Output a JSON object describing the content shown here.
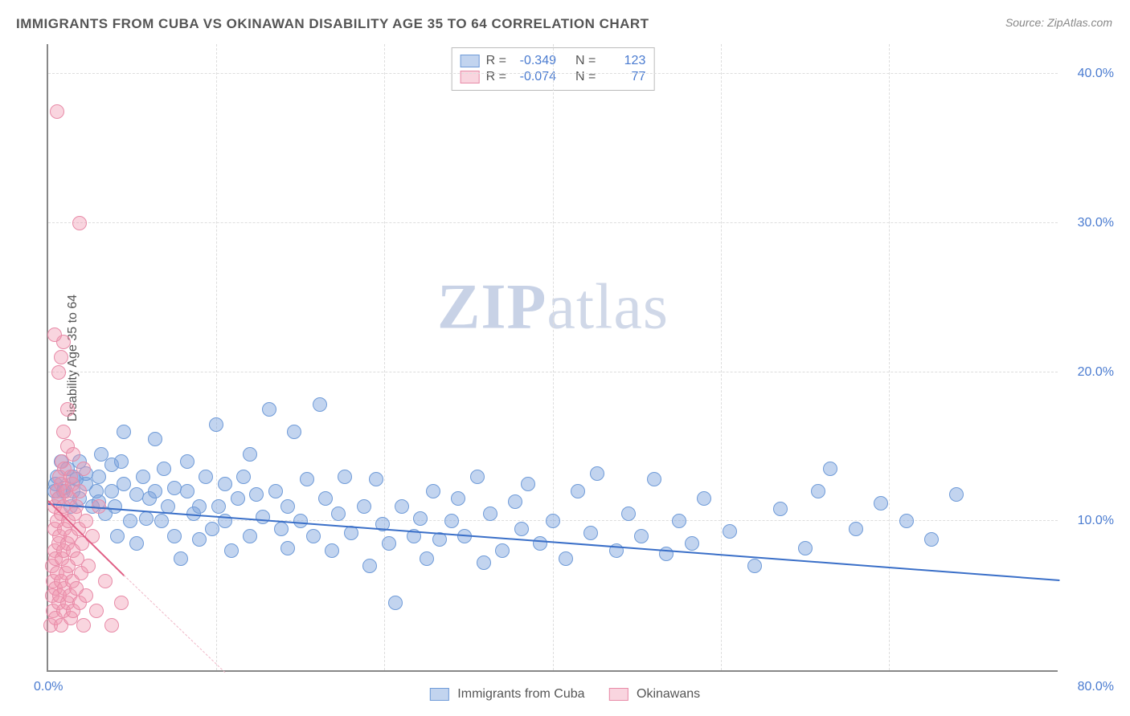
{
  "title": "IMMIGRANTS FROM CUBA VS OKINAWAN DISABILITY AGE 35 TO 64 CORRELATION CHART",
  "source_label": "Source:",
  "source_value": "ZipAtlas.com",
  "ylabel": "Disability Age 35 to 64",
  "watermark_a": "ZIP",
  "watermark_b": "atlas",
  "chart": {
    "type": "scatter",
    "xlim": [
      0,
      80
    ],
    "ylim": [
      0,
      42
    ],
    "x_tick_labels": {
      "origin": "0.0%",
      "max": "80.0%"
    },
    "y_ticks": [
      10,
      20,
      30,
      40
    ],
    "y_tick_labels": [
      "10.0%",
      "20.0%",
      "30.0%",
      "40.0%"
    ],
    "x_gridlines": [
      13.3,
      26.6,
      40,
      53.3,
      66.6
    ],
    "background_color": "#ffffff",
    "grid_color": "#dddddd",
    "axis_color": "#888888",
    "tick_label_color": "#4a7bd0",
    "marker_radius": 9,
    "series": [
      {
        "key": "cuba",
        "label": "Immigrants from Cuba",
        "R": "-0.349",
        "N": "123",
        "color_fill": "rgba(120,160,220,0.45)",
        "color_stroke": "#6f9bd8",
        "trend": {
          "x1": 0,
          "y1": 11.3,
          "x2": 80,
          "y2": 6.2,
          "width": 2.5,
          "color": "#3a6fc8",
          "style": "solid"
        },
        "points": [
          [
            0.5,
            12
          ],
          [
            0.7,
            13
          ],
          [
            0.8,
            11.5
          ],
          [
            0.6,
            12.5
          ],
          [
            1.2,
            12
          ],
          [
            1,
            14
          ],
          [
            1.5,
            13.5
          ],
          [
            1.3,
            12.2
          ],
          [
            1.8,
            11
          ],
          [
            2,
            12
          ],
          [
            2,
            13
          ],
          [
            2.2,
            12.8
          ],
          [
            2.5,
            11.5
          ],
          [
            2.5,
            14
          ],
          [
            3,
            12.5
          ],
          [
            3,
            13.2
          ],
          [
            3.5,
            11
          ],
          [
            3.8,
            12
          ],
          [
            4,
            13
          ],
          [
            4,
            11.3
          ],
          [
            4.2,
            14.5
          ],
          [
            4.5,
            10.5
          ],
          [
            5,
            12
          ],
          [
            5,
            13.8
          ],
          [
            5.3,
            11
          ],
          [
            5.5,
            9
          ],
          [
            5.8,
            14
          ],
          [
            6,
            12.5
          ],
          [
            6,
            16
          ],
          [
            6.5,
            10
          ],
          [
            7,
            11.8
          ],
          [
            7,
            8.5
          ],
          [
            7.5,
            13
          ],
          [
            7.8,
            10.2
          ],
          [
            8,
            11.5
          ],
          [
            8.5,
            12
          ],
          [
            8.5,
            15.5
          ],
          [
            9,
            10
          ],
          [
            9.2,
            13.5
          ],
          [
            9.5,
            11
          ],
          [
            10,
            12.2
          ],
          [
            10,
            9
          ],
          [
            10.5,
            7.5
          ],
          [
            11,
            14
          ],
          [
            11,
            12
          ],
          [
            11.5,
            10.5
          ],
          [
            12,
            8.8
          ],
          [
            12,
            11
          ],
          [
            12.5,
            13
          ],
          [
            13,
            9.5
          ],
          [
            13.3,
            16.5
          ],
          [
            13.5,
            11
          ],
          [
            14,
            12.5
          ],
          [
            14,
            10
          ],
          [
            14.5,
            8
          ],
          [
            15,
            11.5
          ],
          [
            15.5,
            13
          ],
          [
            16,
            9
          ],
          [
            16,
            14.5
          ],
          [
            16.5,
            11.8
          ],
          [
            17,
            10.3
          ],
          [
            17.5,
            17.5
          ],
          [
            18,
            12
          ],
          [
            18.5,
            9.5
          ],
          [
            19,
            11
          ],
          [
            19,
            8.2
          ],
          [
            19.5,
            16
          ],
          [
            20,
            10
          ],
          [
            20.5,
            12.8
          ],
          [
            21,
            9
          ],
          [
            21.5,
            17.8
          ],
          [
            22,
            11.5
          ],
          [
            22.5,
            8
          ],
          [
            23,
            10.5
          ],
          [
            23.5,
            13
          ],
          [
            24,
            9.2
          ],
          [
            25,
            11
          ],
          [
            25.5,
            7
          ],
          [
            26,
            12.8
          ],
          [
            26.5,
            9.8
          ],
          [
            27,
            8.5
          ],
          [
            27.5,
            4.5
          ],
          [
            28,
            11
          ],
          [
            29,
            9
          ],
          [
            29.5,
            10.2
          ],
          [
            30,
            7.5
          ],
          [
            30.5,
            12
          ],
          [
            31,
            8.8
          ],
          [
            32,
            10
          ],
          [
            32.5,
            11.5
          ],
          [
            33,
            9
          ],
          [
            34,
            13
          ],
          [
            34.5,
            7.2
          ],
          [
            35,
            10.5
          ],
          [
            36,
            8
          ],
          [
            37,
            11.3
          ],
          [
            37.5,
            9.5
          ],
          [
            38,
            12.5
          ],
          [
            39,
            8.5
          ],
          [
            40,
            10
          ],
          [
            41,
            7.5
          ],
          [
            42,
            12
          ],
          [
            43,
            9.2
          ],
          [
            43.5,
            13.2
          ],
          [
            45,
            8
          ],
          [
            46,
            10.5
          ],
          [
            47,
            9
          ],
          [
            48,
            12.8
          ],
          [
            49,
            7.8
          ],
          [
            50,
            10
          ],
          [
            51,
            8.5
          ],
          [
            52,
            11.5
          ],
          [
            54,
            9.3
          ],
          [
            56,
            7
          ],
          [
            58,
            10.8
          ],
          [
            60,
            8.2
          ],
          [
            61,
            12
          ],
          [
            62,
            13.5
          ],
          [
            64,
            9.5
          ],
          [
            66,
            11.2
          ],
          [
            68,
            10
          ],
          [
            70,
            8.8
          ],
          [
            72,
            11.8
          ]
        ]
      },
      {
        "key": "okinawans",
        "label": "Okinawans",
        "R": "-0.074",
        "N": "77",
        "color_fill": "rgba(240,150,175,0.4)",
        "color_stroke": "#e88ba8",
        "trend_solid": {
          "x1": 0,
          "y1": 11.5,
          "x2": 6,
          "y2": 6.5,
          "width": 2,
          "color": "#e05f85",
          "style": "solid"
        },
        "trend_dashed": {
          "x1": 6,
          "y1": 6.5,
          "x2": 14,
          "y2": 0,
          "width": 1.5,
          "color": "#f0b8c8",
          "style": "dashed"
        },
        "points": [
          [
            0.2,
            3
          ],
          [
            0.3,
            5
          ],
          [
            0.3,
            7
          ],
          [
            0.4,
            4
          ],
          [
            0.4,
            6
          ],
          [
            0.5,
            8
          ],
          [
            0.5,
            9.5
          ],
          [
            0.5,
            11
          ],
          [
            0.6,
            3.5
          ],
          [
            0.6,
            5.5
          ],
          [
            0.6,
            7.5
          ],
          [
            0.7,
            10
          ],
          [
            0.7,
            12
          ],
          [
            0.7,
            6.5
          ],
          [
            0.8,
            4.5
          ],
          [
            0.8,
            8.5
          ],
          [
            0.8,
            11.5
          ],
          [
            0.9,
            5
          ],
          [
            0.9,
            9
          ],
          [
            0.9,
            13
          ],
          [
            1,
            3
          ],
          [
            1,
            6
          ],
          [
            1,
            10.5
          ],
          [
            1,
            12.5
          ],
          [
            1.1,
            7.5
          ],
          [
            1.1,
            14
          ],
          [
            1.2,
            4
          ],
          [
            1.2,
            8
          ],
          [
            1.2,
            11
          ],
          [
            1.3,
            5.5
          ],
          [
            1.3,
            9.5
          ],
          [
            1.3,
            13.5
          ],
          [
            1.4,
            6.5
          ],
          [
            1.4,
            12
          ],
          [
            1.5,
            4.5
          ],
          [
            1.5,
            8.5
          ],
          [
            1.5,
            15
          ],
          [
            1.6,
            7
          ],
          [
            1.6,
            10
          ],
          [
            1.7,
            5
          ],
          [
            1.7,
            11.5
          ],
          [
            1.8,
            3.5
          ],
          [
            1.8,
            9
          ],
          [
            1.8,
            13
          ],
          [
            1.9,
            6
          ],
          [
            1.9,
            12.5
          ],
          [
            2,
            4
          ],
          [
            2,
            8
          ],
          [
            2,
            14.5
          ],
          [
            2.1,
            10.5
          ],
          [
            2.2,
            5.5
          ],
          [
            2.2,
            11
          ],
          [
            2.3,
            7.5
          ],
          [
            2.4,
            9.5
          ],
          [
            2.5,
            4.5
          ],
          [
            2.5,
            12
          ],
          [
            2.6,
            6.5
          ],
          [
            2.7,
            8.5
          ],
          [
            2.8,
            3
          ],
          [
            2.8,
            13.5
          ],
          [
            3,
            5
          ],
          [
            3,
            10
          ],
          [
            3.2,
            7
          ],
          [
            3.5,
            9
          ],
          [
            3.8,
            4
          ],
          [
            4,
            11
          ],
          [
            4.5,
            6
          ],
          [
            5,
            3
          ],
          [
            5.8,
            4.5
          ],
          [
            1.2,
            16
          ],
          [
            0.8,
            20
          ],
          [
            1,
            21
          ],
          [
            1.2,
            22
          ],
          [
            0.5,
            22.5
          ],
          [
            2.5,
            30
          ],
          [
            0.7,
            37.5
          ],
          [
            1.5,
            17.5
          ]
        ]
      }
    ]
  },
  "legend_top": {
    "r_label": "R =",
    "n_label": "N ="
  }
}
